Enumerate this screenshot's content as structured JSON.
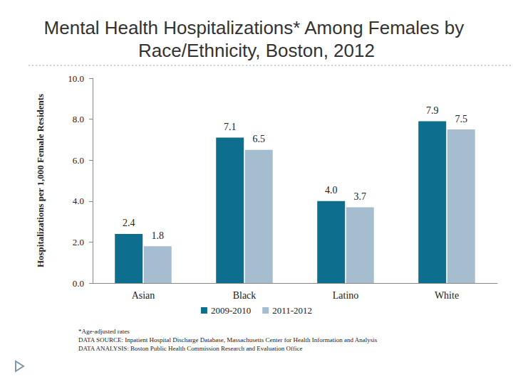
{
  "chart_data": {
    "type": "bar",
    "title": "Mental Health Hospitalizations* Among Females by Race/Ethnicity, Boston, 2012",
    "ylabel": "Hospitalizations per 1,000 Female Residents",
    "categories": [
      "Asian",
      "Black",
      "Latino",
      "White"
    ],
    "series": [
      {
        "name": "2009-2010",
        "color": "#0e6e8e",
        "values": [
          2.4,
          7.1,
          4.0,
          7.9
        ],
        "value_labels": [
          "2.4",
          "7.1",
          "4.0",
          "7.9"
        ]
      },
      {
        "name": "2011-2012",
        "color": "#a6bccf",
        "values": [
          1.8,
          6.5,
          3.7,
          7.5
        ],
        "value_labels": [
          "1.8",
          "6.5",
          "3.7",
          "7.5"
        ]
      }
    ],
    "ylim": [
      0,
      10
    ],
    "yticks": [
      {
        "value": 0,
        "label": "0.0"
      },
      {
        "value": 2,
        "label": "2.0"
      },
      {
        "value": 4,
        "label": "4.0"
      },
      {
        "value": 6,
        "label": "6.0"
      },
      {
        "value": 8,
        "label": "8.0"
      },
      {
        "value": 10,
        "label": "10.0"
      }
    ],
    "grid": false,
    "legend": "bottom",
    "data_labels": true,
    "notes": [
      "*Age-adjusted rates",
      "DATA SOURCE: Inpatient Hospital Discharge Database, Massachusetts Center for Health Information and Analysis",
      "DATA ANALYSIS: Boston Public Health Commission Research and Evaluation Office"
    ]
  }
}
